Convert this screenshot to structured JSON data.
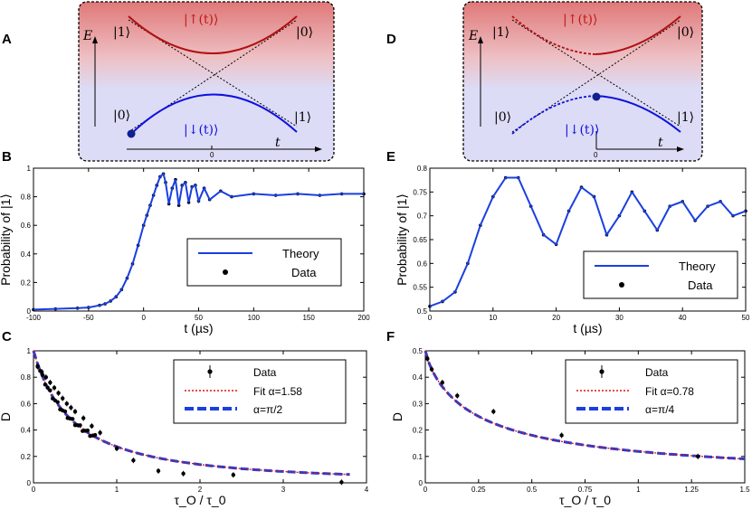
{
  "colors": {
    "theory": "#1a3fe0",
    "data": "#000000",
    "fit": "#e01010",
    "alpha": "#1a3fe0",
    "upper_curve": "#b01010",
    "lower_curve": "#1010e0",
    "top_shade": "#e89090",
    "bottom_shade": "#dcdcf6"
  },
  "panels": {
    "A": {
      "label": "A",
      "energy_label": "E",
      "time_label": "t",
      "zero_tick": "0",
      "upper_state": "|↑(t)⟩",
      "lower_state": "|↓(t)⟩",
      "top_left": "|1⟩",
      "top_right": "|0⟩",
      "bottom_left": "|0⟩",
      "bottom_right": "|1⟩"
    },
    "D": {
      "label": "D",
      "energy_label": "E",
      "time_label": "t",
      "zero_tick": "0",
      "upper_state": "|↑(t)⟩",
      "lower_state": "|↓(t)⟩",
      "top_left": "|1⟩",
      "top_right": "|0⟩",
      "bottom_left": "|0⟩",
      "bottom_right": "|1⟩"
    }
  },
  "chart_data": [
    {
      "id": "B",
      "label": "B",
      "type": "line",
      "xlabel": "t (µs)",
      "ylabel": "Probability of |1⟩",
      "xlim": [
        -100,
        200
      ],
      "ylim": [
        0,
        1
      ],
      "xticks": [
        -100,
        -50,
        0,
        50,
        100,
        150,
        200
      ],
      "yticks": [
        0,
        0.2,
        0.4,
        0.6,
        0.8,
        1
      ],
      "ytick_labels": [
        "0",
        "0.2",
        "0.4",
        "0.6",
        "0.8",
        "1"
      ],
      "legend": [
        "Theory",
        "Data"
      ],
      "series": [
        {
          "name": "Theory",
          "x": [
            -100,
            -80,
            -60,
            -50,
            -40,
            -35,
            -30,
            -25,
            -20,
            -15,
            -10,
            -5,
            0,
            3,
            6,
            9,
            12,
            15,
            18,
            20,
            23,
            26,
            29,
            32,
            35,
            38,
            41,
            44,
            47,
            50,
            55,
            60,
            70,
            80,
            100,
            120,
            140,
            160,
            180,
            200
          ],
          "values": [
            0.01,
            0.015,
            0.02,
            0.025,
            0.04,
            0.05,
            0.07,
            0.1,
            0.15,
            0.23,
            0.33,
            0.46,
            0.6,
            0.67,
            0.74,
            0.81,
            0.88,
            0.94,
            0.96,
            0.9,
            0.75,
            0.86,
            0.92,
            0.74,
            0.88,
            0.9,
            0.76,
            0.87,
            0.88,
            0.77,
            0.86,
            0.78,
            0.84,
            0.8,
            0.82,
            0.81,
            0.82,
            0.81,
            0.82,
            0.82
          ]
        }
      ]
    },
    {
      "id": "C",
      "label": "C",
      "type": "scatter",
      "xlabel": "τ_O / τ_0",
      "ylabel": "D",
      "xlim": [
        0,
        4
      ],
      "ylim": [
        0,
        1
      ],
      "xticks": [
        0,
        1,
        2,
        3,
        4
      ],
      "yticks": [
        0,
        0.2,
        0.4,
        0.6,
        0.8,
        1
      ],
      "ytick_labels": [
        "0",
        "0.2",
        "0.4",
        "0.6",
        "0.8",
        "1"
      ],
      "legend": [
        "Data",
        "Fit  α=1.58",
        "α=π/2"
      ],
      "series": [
        {
          "name": "Data",
          "x": [
            0.05,
            0.1,
            0.15,
            0.2,
            0.25,
            0.3,
            0.35,
            0.4,
            0.45,
            0.5,
            0.6,
            0.7,
            0.8,
            1.0,
            1.2,
            1.5,
            1.8,
            2.4,
            3.7
          ],
          "values": [
            0.88,
            0.84,
            0.8,
            0.76,
            0.72,
            0.68,
            0.64,
            0.6,
            0.57,
            0.54,
            0.49,
            0.43,
            0.38,
            0.26,
            0.17,
            0.09,
            0.07,
            0.06,
            0.005
          ]
        }
      ]
    },
    {
      "id": "E",
      "label": "E",
      "type": "line",
      "xlabel": "t (µs)",
      "ylabel": "Probability of |1⟩",
      "xlim": [
        0,
        50
      ],
      "ylim": [
        0.5,
        0.8
      ],
      "xticks": [
        0,
        10,
        20,
        30,
        40,
        50
      ],
      "yticks": [
        0.5,
        0.55,
        0.6,
        0.65,
        0.7,
        0.75,
        0.8
      ],
      "ytick_labels": [
        "0.5",
        "0.55",
        "0.6",
        "0.65",
        "0.7",
        "0.75",
        "0.8"
      ],
      "legend": [
        "Theory",
        "Data"
      ],
      "series": [
        {
          "name": "Theory",
          "x": [
            0,
            2,
            4,
            6,
            8,
            10,
            12,
            14,
            16,
            18,
            20,
            22,
            24,
            26,
            28,
            30,
            32,
            34,
            36,
            38,
            40,
            42,
            44,
            46,
            48,
            50
          ],
          "values": [
            0.51,
            0.52,
            0.54,
            0.6,
            0.68,
            0.74,
            0.78,
            0.78,
            0.72,
            0.66,
            0.64,
            0.71,
            0.76,
            0.74,
            0.66,
            0.7,
            0.75,
            0.71,
            0.67,
            0.72,
            0.73,
            0.69,
            0.72,
            0.73,
            0.7,
            0.71
          ]
        }
      ]
    },
    {
      "id": "F",
      "label": "F",
      "type": "scatter",
      "xlabel": "τ_O / τ_0",
      "ylabel": "D",
      "xlim": [
        0,
        1.5
      ],
      "ylim": [
        0,
        0.5
      ],
      "xticks": [
        0,
        0.25,
        0.5,
        0.75,
        1,
        1.25,
        1.5
      ],
      "xtick_labels": [
        "0",
        "0.25",
        "0.5",
        "0.75",
        "1",
        "1.25",
        "1.5"
      ],
      "yticks": [
        0,
        0.1,
        0.2,
        0.3,
        0.4,
        0.5
      ],
      "ytick_labels": [
        "0",
        "0.1",
        "0.2",
        "0.3",
        "0.4",
        "0.5"
      ],
      "legend": [
        "Data",
        "Fit  α=0.78",
        "α=π/4"
      ],
      "series": [
        {
          "name": "Data",
          "x": [
            0.01,
            0.03,
            0.08,
            0.15,
            0.32,
            0.64,
            1.28
          ],
          "values": [
            0.47,
            0.43,
            0.38,
            0.33,
            0.27,
            0.18,
            0.1
          ]
        }
      ]
    }
  ]
}
